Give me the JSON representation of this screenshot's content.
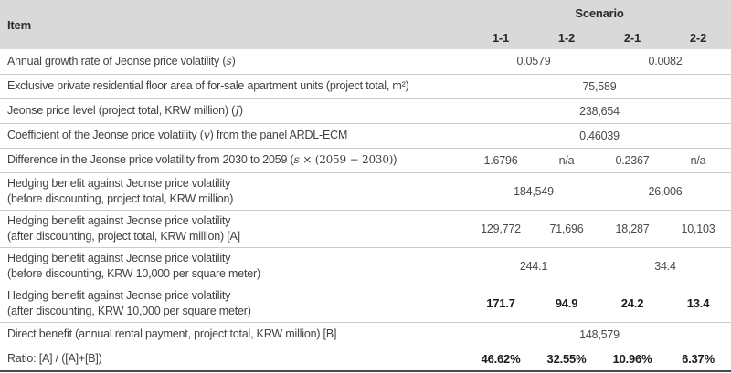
{
  "style": {
    "header_bg": "#d9d9d9",
    "row_rule_color": "#cbcbcb",
    "scenario_rule_color": "#979797",
    "bottom_rule_color": "#4a4a4a",
    "bold_text_color": "#1c1c1c",
    "body_text_color": "#414141"
  },
  "table": {
    "header": {
      "item_label": "Item",
      "scenario_label": "Scenario",
      "scenario_columns": [
        "1-1",
        "1-2",
        "2-1",
        "2-2"
      ]
    },
    "rows": [
      {
        "bold": false,
        "segments": [
          {
            "style": "text",
            "text": "Annual growth rate of Jeonse price volatility ("
          },
          {
            "style": "var",
            "text": "s"
          },
          {
            "style": "text",
            "text": ")"
          }
        ],
        "values": [
          {
            "text": "0.0579",
            "span": 2
          },
          {
            "text": "0.0082",
            "span": 2
          }
        ]
      },
      {
        "bold": false,
        "segments": [
          {
            "style": "text",
            "text": "Exclusive private residential floor area of for-sale apartment units (project total, m²)"
          }
        ],
        "values": [
          {
            "text": "75,589",
            "span": 4
          }
        ]
      },
      {
        "bold": false,
        "segments": [
          {
            "style": "text",
            "text": "Jeonse price level (project total, KRW million) ("
          },
          {
            "style": "var",
            "text": "J"
          },
          {
            "style": "text",
            "text": ")"
          }
        ],
        "values": [
          {
            "text": "238,654",
            "span": 4
          }
        ]
      },
      {
        "bold": false,
        "segments": [
          {
            "style": "text",
            "text": "Coefficient of the Jeonse price volatility ("
          },
          {
            "style": "var",
            "text": "v"
          },
          {
            "style": "text",
            "text": ") from the panel ARDL-ECM"
          }
        ],
        "values": [
          {
            "text": "0.46039",
            "span": 4
          }
        ]
      },
      {
        "bold": false,
        "segments": [
          {
            "style": "text",
            "text": "Difference in the Jeonse price volatility from 2030 to 2059 ("
          },
          {
            "style": "var",
            "text": "s"
          },
          {
            "style": "serif",
            "text": " × (2059 − 2030)"
          },
          {
            "style": "text",
            "text": ")"
          }
        ],
        "values": [
          {
            "text": "1.6796",
            "span": 1
          },
          {
            "text": "n/a",
            "span": 1
          },
          {
            "text": "0.2367",
            "span": 1
          },
          {
            "text": "n/a",
            "span": 1
          }
        ]
      },
      {
        "bold": false,
        "segments": [
          {
            "style": "text",
            "text": "Hedging benefit against Jeonse price volatility"
          },
          {
            "style": "break",
            "text": ""
          },
          {
            "style": "text",
            "text": "(before discounting, project total, KRW million)"
          }
        ],
        "values": [
          {
            "text": "184,549",
            "span": 2
          },
          {
            "text": "26,006",
            "span": 2
          }
        ]
      },
      {
        "bold": false,
        "segments": [
          {
            "style": "text",
            "text": "Hedging benefit against Jeonse price volatility"
          },
          {
            "style": "break",
            "text": ""
          },
          {
            "style": "text",
            "text": "(after discounting, project total, KRW million) [A]"
          }
        ],
        "values": [
          {
            "text": "129,772",
            "span": 1
          },
          {
            "text": "71,696",
            "span": 1
          },
          {
            "text": "18,287",
            "span": 1
          },
          {
            "text": "10,103",
            "span": 1
          }
        ]
      },
      {
        "bold": false,
        "segments": [
          {
            "style": "text",
            "text": "Hedging benefit against Jeonse price volatility"
          },
          {
            "style": "break",
            "text": ""
          },
          {
            "style": "text",
            "text": "(before discounting, KRW 10,000 per square meter)"
          }
        ],
        "values": [
          {
            "text": "244.1",
            "span": 2
          },
          {
            "text": "34.4",
            "span": 2
          }
        ]
      },
      {
        "bold": true,
        "segments": [
          {
            "style": "text",
            "text": "Hedging benefit against Jeonse price volatility"
          },
          {
            "style": "break",
            "text": ""
          },
          {
            "style": "text",
            "text": "(after discounting, KRW 10,000 per square meter)"
          }
        ],
        "values": [
          {
            "text": "171.7",
            "span": 1
          },
          {
            "text": "94.9",
            "span": 1
          },
          {
            "text": "24.2",
            "span": 1
          },
          {
            "text": "13.4",
            "span": 1
          }
        ]
      },
      {
        "bold": false,
        "segments": [
          {
            "style": "text",
            "text": "Direct benefit (annual rental payment, project total, KRW million) [B]"
          }
        ],
        "values": [
          {
            "text": "148,579",
            "span": 4
          }
        ]
      },
      {
        "bold": true,
        "segments": [
          {
            "style": "text",
            "text": "Ratio: [A] / ([A]+[B])"
          }
        ],
        "values": [
          {
            "text": "46.62%",
            "span": 1
          },
          {
            "text": "32.55%",
            "span": 1
          },
          {
            "text": "10.96%",
            "span": 1
          },
          {
            "text": "6.37%",
            "span": 1
          }
        ]
      }
    ]
  }
}
